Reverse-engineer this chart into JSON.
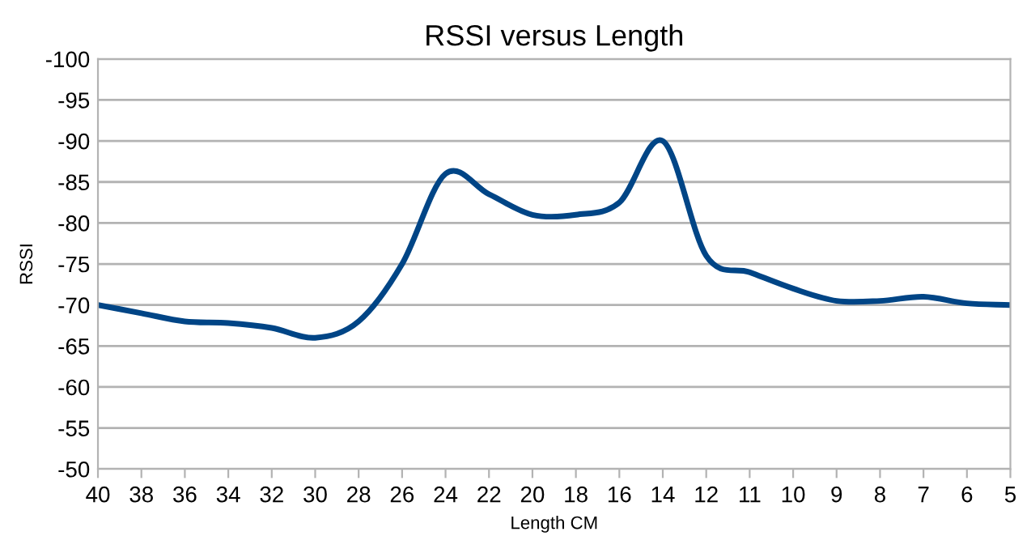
{
  "chart_data": {
    "type": "line",
    "title": "RSSI versus Length",
    "xlabel": "Length CM",
    "ylabel": "RSSI",
    "categories": [
      "40",
      "38",
      "36",
      "34",
      "32",
      "30",
      "28",
      "26",
      "24",
      "22",
      "20",
      "18",
      "16",
      "14",
      "12",
      "11",
      "10",
      "9",
      "8",
      "7",
      "6",
      "5"
    ],
    "series": [
      {
        "color": "#004586",
        "values": [
          -70,
          -69,
          -68,
          -67.8,
          -67.2,
          -66,
          -68,
          -75,
          -86,
          -83.5,
          -81,
          -81,
          -82.5,
          -90,
          -76,
          -74,
          -72,
          -70.5,
          -70.5,
          -71,
          -70.2,
          -70
        ]
      }
    ],
    "ylim": [
      -50,
      -100
    ],
    "yticks": [
      -50,
      -55,
      -60,
      -65,
      -70,
      -75,
      -80,
      -85,
      -90,
      -95,
      -100
    ],
    "grid": "y",
    "legend": false,
    "marker": "none",
    "line_style": "solid"
  }
}
